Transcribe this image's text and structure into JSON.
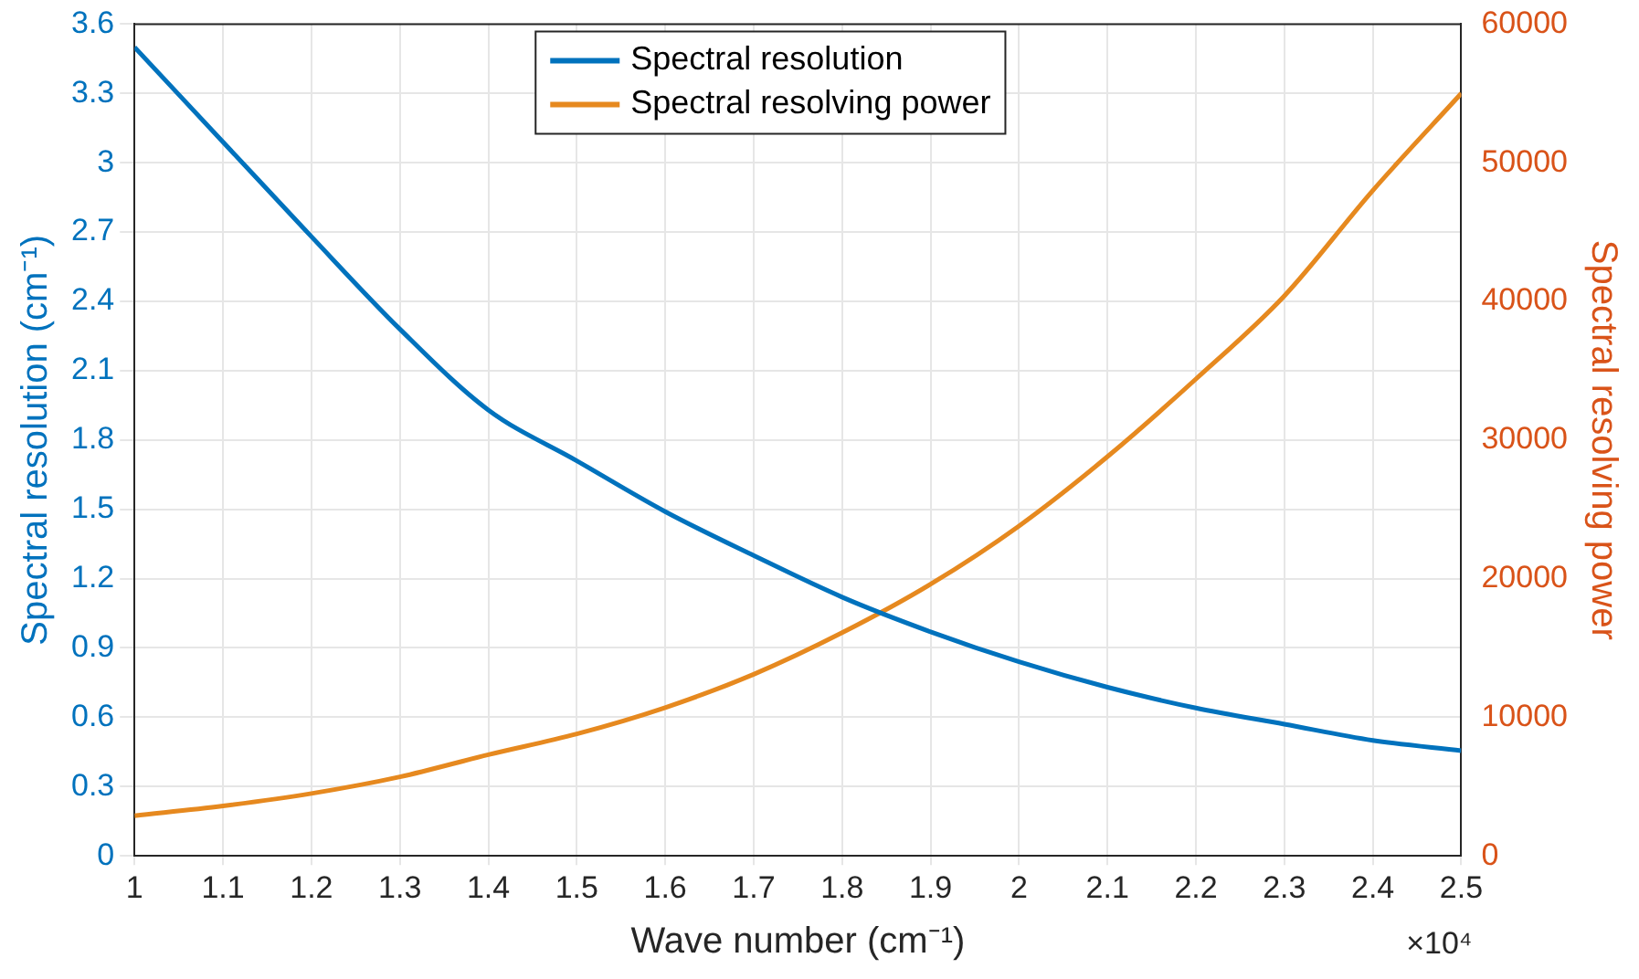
{
  "chart_data": {
    "type": "line",
    "xlabel": "Wave number (cm⁻¹)",
    "ylabel": "Spectral resolution (cm⁻¹)",
    "y2label": "Spectral resolving power",
    "x": [
      1,
      1.1,
      1.2,
      1.3,
      1.4,
      1.5,
      1.6,
      1.7,
      1.8,
      1.9,
      2,
      2.1,
      2.2,
      2.3,
      2.4,
      2.5
    ],
    "series": [
      {
        "name": "Spectral resolution",
        "color": "#0072bd",
        "values": [
          3.5,
          3.09,
          2.68,
          2.28,
          1.93,
          1.71,
          1.49,
          1.3,
          1.12,
          0.97,
          0.84,
          0.73,
          0.64,
          0.57,
          0.5,
          0.455
        ]
      },
      {
        "name": "Spectral resolving power",
        "color": "#e6891f",
        "axis": "y2",
        "values": [
          2900,
          3600,
          4500,
          5700,
          7300,
          8800,
          10700,
          13100,
          16100,
          19600,
          23800,
          28800,
          34400,
          40400,
          48000,
          55000
        ]
      }
    ],
    "xlim": [
      1,
      2.5
    ],
    "xticks": [
      1,
      1.1,
      1.2,
      1.3,
      1.4,
      1.5,
      1.6,
      1.7,
      1.8,
      1.9,
      2,
      2.1,
      2.2,
      2.3,
      2.4,
      2.5
    ],
    "ylim": [
      0,
      3.6
    ],
    "yticks": [
      0,
      0.3,
      0.6,
      0.9,
      1.2,
      1.5,
      1.8,
      2.1,
      2.4,
      2.7,
      3,
      3.3,
      3.6
    ],
    "y2lim": [
      0,
      60000
    ],
    "y2ticks": [
      0,
      10000,
      20000,
      30000,
      40000,
      50000,
      60000
    ],
    "annotations": [
      "×10⁴"
    ],
    "grid": true,
    "legend": "top",
    "marker": "none",
    "line_style": "solid"
  }
}
